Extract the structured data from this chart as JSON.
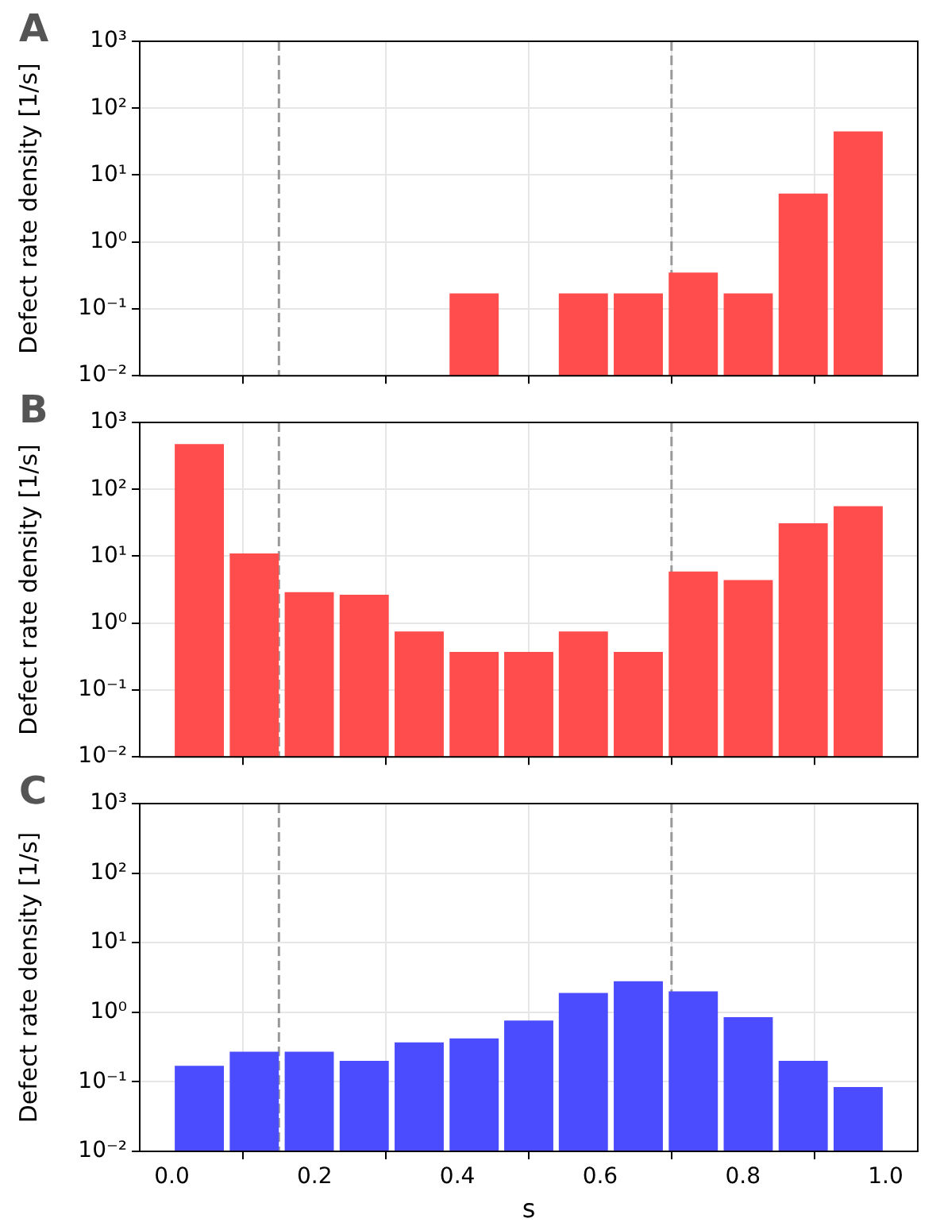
{
  "chart_data": [
    {
      "type": "histogram",
      "title": "A",
      "ylabel": "Defect rate density [1/s]",
      "bins": [
        0.385,
        0.462,
        0.538,
        0.615,
        0.692,
        0.769,
        0.846,
        0.923,
        1
      ],
      "values": [
        0.17,
        null,
        0.17,
        0.17,
        0.35,
        0.17,
        5.3,
        45
      ],
      "color": "#ff4c4c",
      "xlim": [
        -0.045,
        1.045
      ],
      "xticks": [
        0,
        0.2,
        0.4,
        0.6,
        0.8,
        1
      ],
      "ylim": [
        0.01,
        1000
      ],
      "yticks": [
        {
          "value": 0.01,
          "label": "10⁻²"
        },
        {
          "value": 0.1,
          "label": "10⁻¹"
        },
        {
          "value": 1,
          "label": "10⁰"
        },
        {
          "value": 10,
          "label": "10¹"
        },
        {
          "value": 100,
          "label": "10²"
        },
        {
          "value": 1000,
          "label": "10³"
        }
      ],
      "log": "y",
      "grid": true,
      "tick_labels": "y",
      "ref_lines": [
        {
          "axis": "x",
          "value": 0.15,
          "color": "#999999",
          "line_style": "dashed"
        },
        {
          "axis": "x",
          "value": 0.7,
          "color": "#999999",
          "line_style": "dashed"
        }
      ]
    },
    {
      "type": "histogram",
      "title": "B",
      "ylabel": "Defect rate density [1/s]",
      "bins": [
        0,
        0.077,
        0.154,
        0.231,
        0.308,
        0.385,
        0.462,
        0.538,
        0.615,
        0.692,
        0.769,
        0.846,
        0.923,
        1
      ],
      "values": [
        476,
        11,
        2.9,
        2.65,
        0.75,
        0.37,
        0.37,
        0.75,
        0.37,
        5.9,
        4.4,
        31,
        56
      ],
      "color": "#ff4c4c",
      "xlim": [
        -0.045,
        1.045
      ],
      "xticks": [
        0,
        0.2,
        0.4,
        0.6,
        0.8,
        1
      ],
      "ylim": [
        0.01,
        1000
      ],
      "yticks": [
        {
          "value": 0.01,
          "label": "10⁻²"
        },
        {
          "value": 0.1,
          "label": "10⁻¹"
        },
        {
          "value": 1,
          "label": "10⁰"
        },
        {
          "value": 10,
          "label": "10¹"
        },
        {
          "value": 100,
          "label": "10²"
        },
        {
          "value": 1000,
          "label": "10³"
        }
      ],
      "log": "y",
      "grid": true,
      "tick_labels": "y",
      "ref_lines": [
        {
          "axis": "x",
          "value": 0.15,
          "color": "#999999",
          "line_style": "dashed"
        },
        {
          "axis": "x",
          "value": 0.7,
          "color": "#999999",
          "line_style": "dashed"
        }
      ]
    },
    {
      "type": "histogram",
      "title": "C",
      "xlabel": "s",
      "ylabel": "Defect rate density [1/s]",
      "bins": [
        0,
        0.077,
        0.154,
        0.231,
        0.308,
        0.385,
        0.462,
        0.538,
        0.615,
        0.692,
        0.769,
        0.846,
        0.923,
        1
      ],
      "values": [
        0.17,
        0.27,
        0.27,
        0.2,
        0.37,
        0.42,
        0.76,
        1.9,
        2.8,
        2.0,
        0.85,
        0.2,
        0.084
      ],
      "color": "#4c4cff",
      "xlim": [
        -0.045,
        1.045
      ],
      "xticks": [
        {
          "value": 0,
          "label": "0.0"
        },
        0.2,
        0.4,
        0.6,
        0.8,
        {
          "value": 1,
          "label": "1.0"
        }
      ],
      "ylim": [
        0.01,
        1000
      ],
      "yticks": [
        {
          "value": 0.01,
          "label": "10⁻²"
        },
        {
          "value": 0.1,
          "label": "10⁻¹"
        },
        {
          "value": 1,
          "label": "10⁰"
        },
        {
          "value": 10,
          "label": "10¹"
        },
        {
          "value": 100,
          "label": "10²"
        },
        {
          "value": 1000,
          "label": "10³"
        }
      ],
      "log": "y",
      "grid": true,
      "ref_lines": [
        {
          "axis": "x",
          "value": 0.15,
          "color": "#999999",
          "line_style": "dashed"
        },
        {
          "axis": "x",
          "value": 0.7,
          "color": "#999999",
          "line_style": "dashed"
        }
      ]
    }
  ]
}
